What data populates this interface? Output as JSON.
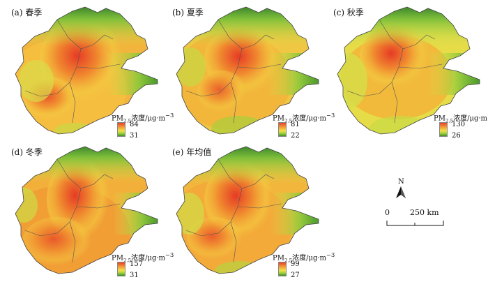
{
  "legend_unit": "浓度/μg·m",
  "legend_prefix": "PM",
  "legend_sub": "2.5",
  "legend_sup": "−3",
  "north_label": "N",
  "scale_bar": {
    "start": "0",
    "end": "250 km"
  },
  "colors": {
    "high": "#e8412a",
    "mid_high": "#f3a338",
    "mid": "#f2e14a",
    "mid_low": "#9fcf3a",
    "low": "#3a8f2a"
  },
  "panels": [
    {
      "title": "(a) 春季",
      "max": "84",
      "min": "31"
    },
    {
      "title": "(b) 夏季",
      "max": "81",
      "min": "22"
    },
    {
      "title": "(c) 秋季",
      "max": "130",
      "min": "26"
    },
    {
      "title": "(d) 冬季",
      "max": "157",
      "min": "31"
    },
    {
      "title": "(e) 年均值",
      "max": "99",
      "min": "27"
    }
  ]
}
